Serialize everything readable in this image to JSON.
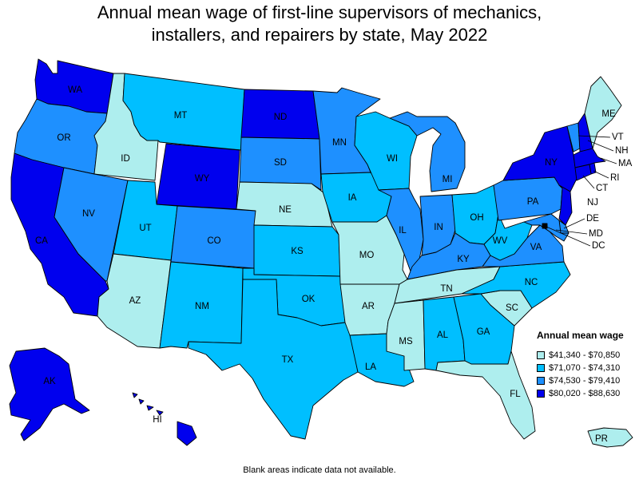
{
  "title_lines": [
    "Annual mean wage of first-line supervisors of mechanics,",
    "installers, and repairers by state, May 2022"
  ],
  "legend": {
    "title": "Annual mean wage",
    "bins": [
      {
        "label": "$41,340 - $70,850",
        "color": "#aeeeee"
      },
      {
        "label": "$71,070 - $74,310",
        "color": "#00bfff"
      },
      {
        "label": "$74,530 - $79,410",
        "color": "#1e90ff"
      },
      {
        "label": "$80,020 - $88,630",
        "color": "#0000ee"
      }
    ]
  },
  "footnote": "Blank areas indicate data not available.",
  "states": [
    {
      "abbr": "WA",
      "bin": 3
    },
    {
      "abbr": "OR",
      "bin": 2
    },
    {
      "abbr": "CA",
      "bin": 3
    },
    {
      "abbr": "ID",
      "bin": 0
    },
    {
      "abbr": "NV",
      "bin": 2
    },
    {
      "abbr": "MT",
      "bin": 1
    },
    {
      "abbr": "WY",
      "bin": 3
    },
    {
      "abbr": "UT",
      "bin": 1
    },
    {
      "abbr": "AZ",
      "bin": 0
    },
    {
      "abbr": "CO",
      "bin": 2
    },
    {
      "abbr": "NM",
      "bin": 1
    },
    {
      "abbr": "ND",
      "bin": 3
    },
    {
      "abbr": "SD",
      "bin": 2
    },
    {
      "abbr": "NE",
      "bin": 0
    },
    {
      "abbr": "KS",
      "bin": 1
    },
    {
      "abbr": "OK",
      "bin": 1
    },
    {
      "abbr": "TX",
      "bin": 1
    },
    {
      "abbr": "MN",
      "bin": 2
    },
    {
      "abbr": "IA",
      "bin": 1
    },
    {
      "abbr": "MO",
      "bin": 0
    },
    {
      "abbr": "AR",
      "bin": 0
    },
    {
      "abbr": "LA",
      "bin": 1
    },
    {
      "abbr": "WI",
      "bin": 1
    },
    {
      "abbr": "IL",
      "bin": 2
    },
    {
      "abbr": "MI",
      "bin": 2
    },
    {
      "abbr": "IN",
      "bin": 2
    },
    {
      "abbr": "OH",
      "bin": 1
    },
    {
      "abbr": "KY",
      "bin": 2
    },
    {
      "abbr": "TN",
      "bin": 0
    },
    {
      "abbr": "MS",
      "bin": 0
    },
    {
      "abbr": "AL",
      "bin": 1
    },
    {
      "abbr": "GA",
      "bin": 1
    },
    {
      "abbr": "FL",
      "bin": 0
    },
    {
      "abbr": "SC",
      "bin": 0
    },
    {
      "abbr": "NC",
      "bin": 1
    },
    {
      "abbr": "VA",
      "bin": 2
    },
    {
      "abbr": "WV",
      "bin": 1
    },
    {
      "abbr": "PA",
      "bin": 2
    },
    {
      "abbr": "NY",
      "bin": 3
    },
    {
      "abbr": "VT",
      "bin": 2
    },
    {
      "abbr": "NH",
      "bin": 3
    },
    {
      "abbr": "ME",
      "bin": 0
    },
    {
      "abbr": "MA",
      "bin": 3
    },
    {
      "abbr": "RI",
      "bin": 3
    },
    {
      "abbr": "CT",
      "bin": 3
    },
    {
      "abbr": "NJ",
      "bin": 3
    },
    {
      "abbr": "DE",
      "bin": 2
    },
    {
      "abbr": "MD",
      "bin": 2
    },
    {
      "abbr": "DC",
      "bin": 3
    },
    {
      "abbr": "AK",
      "bin": 3
    },
    {
      "abbr": "HI",
      "bin": 3
    },
    {
      "abbr": "PR",
      "bin": 0
    }
  ]
}
